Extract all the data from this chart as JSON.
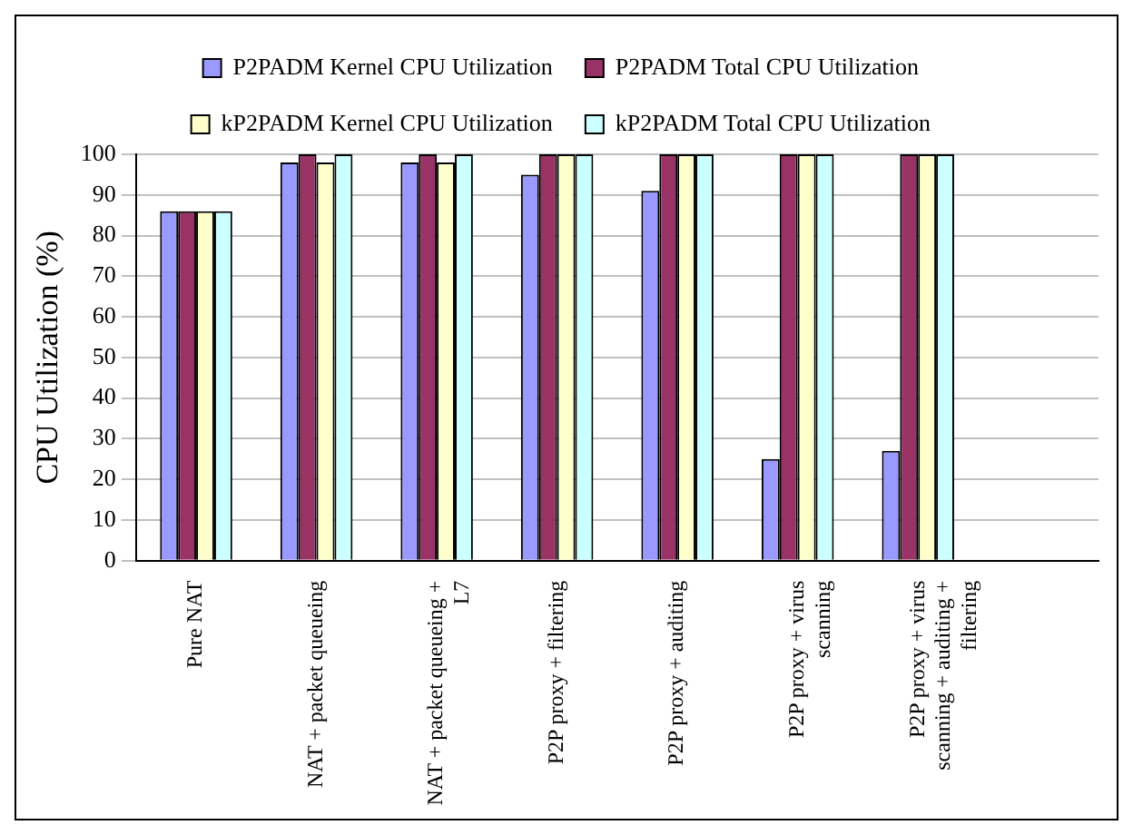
{
  "chart_data": {
    "type": "bar",
    "ylabel": "CPU Utilization (%)",
    "categories": [
      "Pure NAT",
      "NAT + packet queueing",
      "NAT + packet queueing + L7",
      "P2P proxy + filtering",
      "P2P proxy + auditing",
      "P2P proxy + virus scanning",
      "P2P proxy + virus scanning + auditing + filtering",
      null
    ],
    "series": [
      {
        "name": "P2PADM Kernel CPU Utilization",
        "color": "#9999ff",
        "values": [
          86,
          98,
          98,
          95,
          91,
          25,
          27,
          null
        ]
      },
      {
        "name": "P2PADM Total CPU Utilization",
        "color": "#993366",
        "values": [
          86,
          100,
          100,
          100,
          100,
          100,
          100,
          null
        ]
      },
      {
        "name": "kP2PADM Kernel CPU Utilization",
        "color": "#ffffcc",
        "values": [
          86,
          98,
          98,
          100,
          100,
          100,
          100,
          null
        ]
      },
      {
        "name": "kP2PADM Total CPU Utilization",
        "color": "#ccffff",
        "values": [
          86,
          100,
          100,
          100,
          100,
          100,
          100,
          null
        ]
      }
    ],
    "ylim": [
      0,
      100
    ],
    "yticks": [
      0,
      10,
      20,
      30,
      40,
      50,
      60,
      70,
      80,
      90,
      100
    ],
    "grid": "y",
    "legend": "top"
  }
}
